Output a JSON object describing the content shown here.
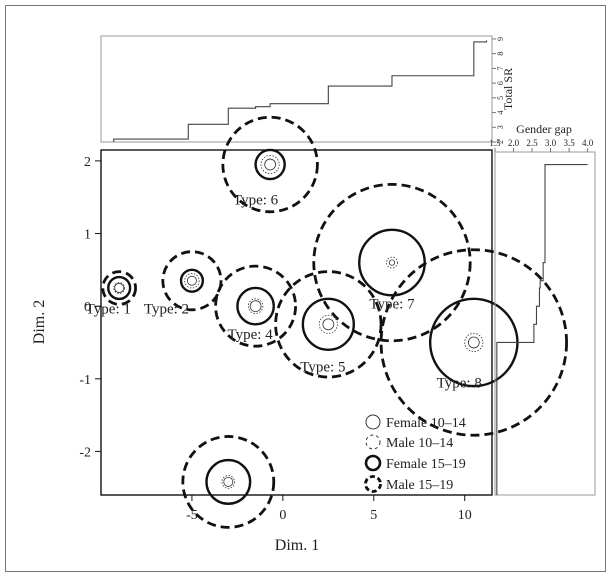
{
  "chart_data": [
    {
      "type": "scatter",
      "xlabel": "Dim. 1",
      "ylabel": "Dim. 2",
      "xlim": [
        -10,
        11.5
      ],
      "ylim": [
        -2.6,
        2.15
      ],
      "xticks": [
        "-5",
        "0",
        "5",
        "10"
      ],
      "xtick_values": [
        -5,
        0,
        5,
        10
      ],
      "yticks": [
        "2",
        "1",
        "0",
        "-1",
        "-2"
      ],
      "ytick_values": [
        2,
        1,
        0,
        -1,
        -2
      ],
      "points": [
        {
          "label": "Type: 1",
          "x": -9.0,
          "y": 0.25,
          "label_dx": -0.6,
          "label_dy": -0.35,
          "female_10_14": 0.25,
          "male_10_14": 0.3,
          "female_15_19": 0.6,
          "male_15_19": 0.9
        },
        {
          "label": "Type: 2",
          "x": -5.0,
          "y": 0.35,
          "label_dx": -1.4,
          "label_dy": -0.45,
          "female_10_14": 0.25,
          "male_10_14": 0.4,
          "female_15_19": 0.6,
          "male_15_19": 1.6
        },
        {
          "label": "Type: 4",
          "x": -1.5,
          "y": 0.0,
          "label_dx": -0.3,
          "label_dy": -0.45,
          "female_10_14": 0.3,
          "male_10_14": 0.4,
          "female_15_19": 1.0,
          "male_15_19": 2.2
        },
        {
          "label": "Type: 5",
          "x": 2.5,
          "y": -0.25,
          "label_dx": -0.3,
          "label_dy": -0.65,
          "female_10_14": 0.3,
          "male_10_14": 0.5,
          "female_15_19": 1.4,
          "male_15_19": 2.9
        },
        {
          "label": "Type: 6",
          "x": -0.7,
          "y": 1.95,
          "label_dx": -0.8,
          "label_dy": -0.55,
          "female_10_14": 0.3,
          "male_10_14": 0.5,
          "female_15_19": 0.8,
          "male_15_19": 2.6
        },
        {
          "label": "Type: 7",
          "x": 6.0,
          "y": 0.6,
          "label_dx": 0.0,
          "label_dy": -0.63,
          "female_10_14": 0.15,
          "male_10_14": 0.3,
          "female_15_19": 1.8,
          "male_15_19": 4.3
        },
        {
          "label": "Type: 8",
          "x": 10.5,
          "y": -0.5,
          "label_dx": -0.8,
          "label_dy": -0.62,
          "female_10_14": 0.3,
          "male_10_14": 0.5,
          "female_15_19": 2.4,
          "male_15_19": 5.1
        },
        {
          "label": "",
          "x": -3.0,
          "y": -2.42,
          "label_dx": 0,
          "label_dy": 0,
          "female_10_14": 0.25,
          "male_10_14": 0.35,
          "female_15_19": 1.2,
          "male_15_19": 2.5
        }
      ],
      "legend": {
        "position": "bottom-right",
        "entries": [
          {
            "label": "Female 10–14",
            "style": "thin-solid"
          },
          {
            "label": "Male 10–14",
            "style": "thin-dashed"
          },
          {
            "label": "Female 15–19",
            "style": "thick-solid"
          },
          {
            "label": "Male 15–19",
            "style": "thick-dashed"
          }
        ]
      },
      "grid": false
    },
    {
      "type": "line",
      "subtype": "step",
      "ylabel": "Total SR",
      "yticks": [
        "2",
        "3",
        "4",
        "5",
        "6",
        "7",
        "8",
        "9"
      ],
      "ytick_values": [
        2,
        3,
        4,
        5,
        6,
        7,
        8,
        9
      ],
      "ylim": [
        2,
        9.2
      ],
      "xlim": [
        -10,
        11.5
      ],
      "x": [
        -9.3,
        -5.2,
        -3.0,
        -1.5,
        -0.7,
        2.5,
        6.0,
        10.5,
        11.2
      ],
      "y": [
        2.2,
        3.2,
        4.3,
        4.4,
        4.6,
        5.8,
        6.5,
        8.8,
        8.9
      ],
      "axis_position": "right"
    },
    {
      "type": "line",
      "subtype": "step",
      "xlabel": "Gender gap",
      "xticks": [
        "1.5",
        "2.0",
        "2.5",
        "3.0",
        "3.5",
        "4.0"
      ],
      "xtick_values": [
        1.5,
        2.0,
        2.5,
        3.0,
        3.5,
        4.0
      ],
      "xlim": [
        1.5,
        4.2
      ],
      "ylim": [
        -2.6,
        2.15
      ],
      "x": [
        1.55,
        2.55,
        2.62,
        2.7,
        2.72,
        2.8,
        2.85,
        2.95,
        3.0,
        4.0
      ],
      "y": [
        -2.42,
        -0.5,
        -0.25,
        0.0,
        0.25,
        0.35,
        0.6,
        1.95,
        1.95,
        1.95
      ],
      "axis_position": "top"
    }
  ],
  "style": {
    "line_color": "#1a1a1a",
    "frame_color": "#777777",
    "panel_color": "#999999"
  }
}
